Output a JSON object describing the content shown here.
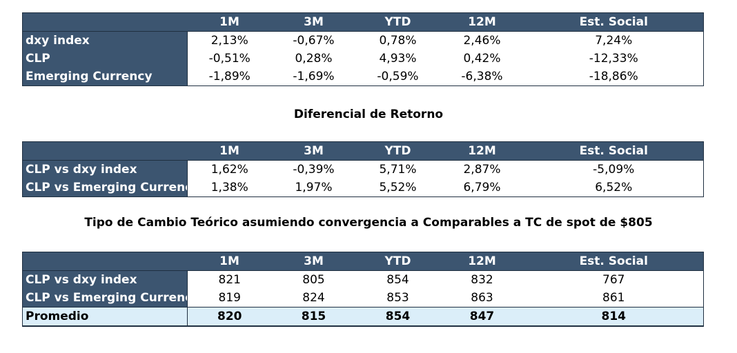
{
  "columns": [
    "1M",
    "3M",
    "YTD",
    "12M",
    "Est. Social"
  ],
  "table1": {
    "rows": [
      {
        "label": "dxy index",
        "values": [
          "2,13%",
          "-0,67%",
          "0,78%",
          "2,46%",
          "7,24%"
        ]
      },
      {
        "label": "CLP",
        "values": [
          "-0,51%",
          "0,28%",
          "4,93%",
          "0,42%",
          "-12,33%"
        ]
      },
      {
        "label": "Emerging Currency",
        "values": [
          "-1,89%",
          "-1,69%",
          "-0,59%",
          "-6,38%",
          "-18,86%"
        ]
      }
    ]
  },
  "section2_title": "Diferencial de Retorno",
  "table2": {
    "rows": [
      {
        "label": "CLP vs dxy index",
        "values": [
          "1,62%",
          "-0,39%",
          "5,71%",
          "2,87%",
          "-5,09%"
        ]
      },
      {
        "label": "CLP vs Emerging Currency",
        "values": [
          "1,38%",
          "1,97%",
          "5,52%",
          "6,79%",
          "6,52%"
        ]
      }
    ]
  },
  "section3_title": "Tipo de Cambio Teórico asumiendo convergencia a Comparables a TC de spot de $805",
  "table3": {
    "rows": [
      {
        "label": "CLP vs dxy index",
        "values": [
          "821",
          "805",
          "854",
          "832",
          "767"
        ]
      },
      {
        "label": "CLP vs Emerging Currency",
        "values": [
          "819",
          "824",
          "853",
          "863",
          "861"
        ]
      }
    ],
    "average": {
      "label": "Promedio",
      "values": [
        "820",
        "815",
        "854",
        "847",
        "814"
      ]
    }
  },
  "colors": {
    "header_bg": "#3c5570",
    "header_text": "#ffffff",
    "average_bg": "#dbeef9"
  }
}
